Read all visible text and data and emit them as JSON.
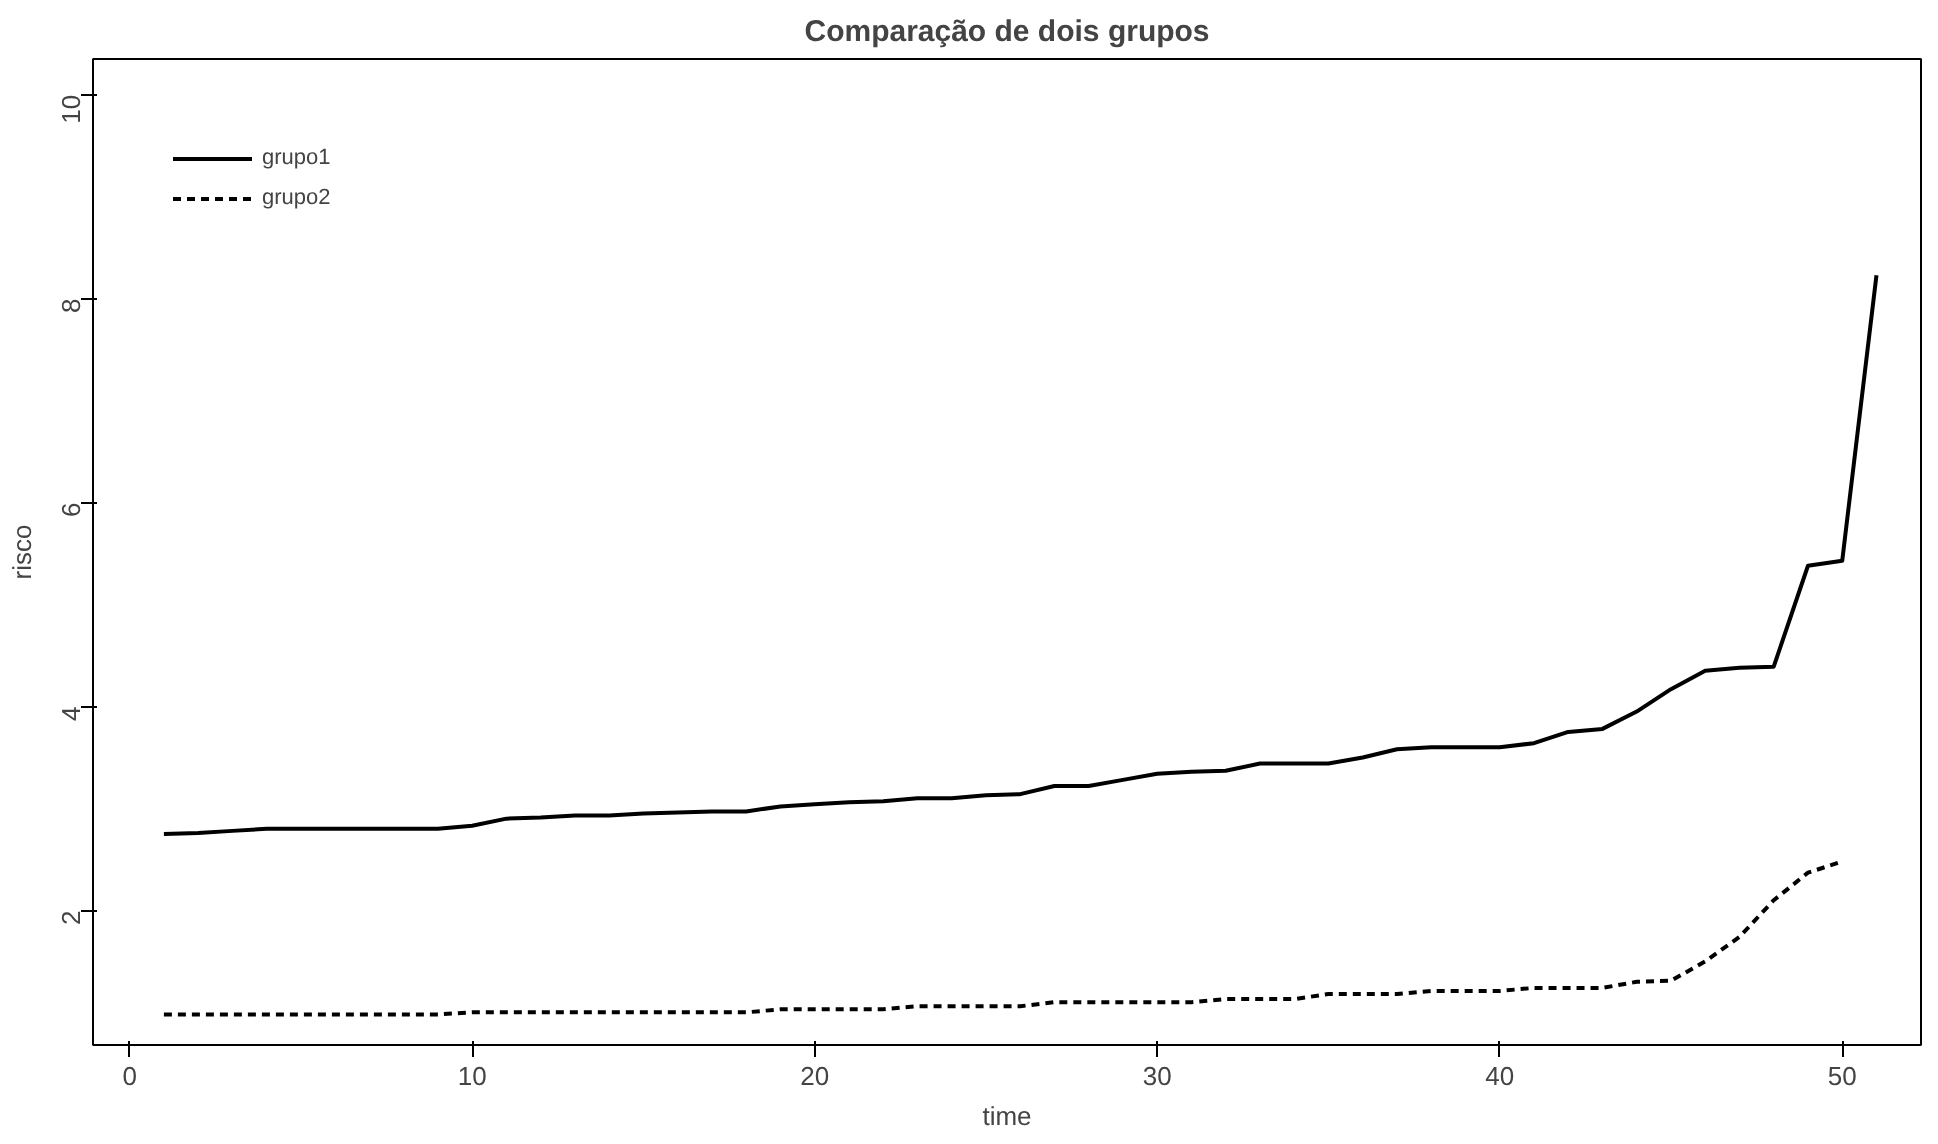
{
  "chart_data": {
    "type": "line",
    "title": "Comparação de dois grupos",
    "xlabel": "time",
    "ylabel": "risco",
    "xlim": [
      -1.07,
      52.3
    ],
    "ylim": [
      0.68,
      10.35
    ],
    "xticks": [
      0,
      10,
      20,
      30,
      40,
      50
    ],
    "yticks": [
      2,
      4,
      6,
      8,
      10
    ],
    "grid": false,
    "legend": "top left",
    "marker": "none",
    "series": [
      {
        "name": "grupo1",
        "color": "#000000",
        "line_style": "solid",
        "x": [
          1,
          2,
          3,
          4,
          5,
          6,
          7,
          8,
          9,
          10,
          11,
          12,
          13,
          14,
          15,
          16,
          17,
          18,
          19,
          20,
          21,
          22,
          23,
          24,
          25,
          26,
          27,
          28,
          29,
          30,
          31,
          32,
          33,
          34,
          35,
          36,
          37,
          38,
          39,
          40,
          41,
          42,
          43,
          44,
          45,
          46,
          47,
          48,
          49,
          50,
          51
        ],
        "values": [
          2.75,
          2.76,
          2.78,
          2.8,
          2.8,
          2.8,
          2.8,
          2.8,
          2.8,
          2.83,
          2.9,
          2.91,
          2.93,
          2.93,
          2.95,
          2.96,
          2.97,
          2.97,
          3.02,
          3.04,
          3.06,
          3.07,
          3.1,
          3.1,
          3.13,
          3.14,
          3.22,
          3.22,
          3.28,
          3.34,
          3.36,
          3.37,
          3.44,
          3.44,
          3.44,
          3.5,
          3.58,
          3.6,
          3.6,
          3.6,
          3.64,
          3.75,
          3.78,
          3.95,
          4.17,
          4.35,
          4.38,
          4.39,
          5.38,
          5.43,
          8.23
        ]
      },
      {
        "name": "grupo2",
        "color": "#000000",
        "line_style": "dashed",
        "x": [
          1,
          2,
          3,
          4,
          5,
          6,
          7,
          8,
          9,
          10,
          11,
          12,
          13,
          14,
          15,
          16,
          17,
          18,
          19,
          20,
          21,
          22,
          23,
          24,
          25,
          26,
          27,
          28,
          29,
          30,
          31,
          32,
          33,
          34,
          35,
          36,
          37,
          38,
          39,
          40,
          41,
          42,
          43,
          44,
          45,
          46,
          47,
          48,
          49,
          50
        ],
        "values": [
          0.98,
          0.98,
          0.98,
          0.98,
          0.98,
          0.98,
          0.98,
          0.98,
          0.98,
          1.0,
          1.0,
          1.0,
          1.0,
          1.0,
          1.0,
          1.0,
          1.0,
          1.0,
          1.03,
          1.03,
          1.03,
          1.03,
          1.06,
          1.06,
          1.06,
          1.06,
          1.1,
          1.1,
          1.1,
          1.1,
          1.1,
          1.13,
          1.13,
          1.13,
          1.18,
          1.18,
          1.18,
          1.21,
          1.21,
          1.21,
          1.24,
          1.24,
          1.24,
          1.3,
          1.31,
          1.5,
          1.74,
          2.1,
          2.37,
          2.48
        ]
      }
    ]
  }
}
